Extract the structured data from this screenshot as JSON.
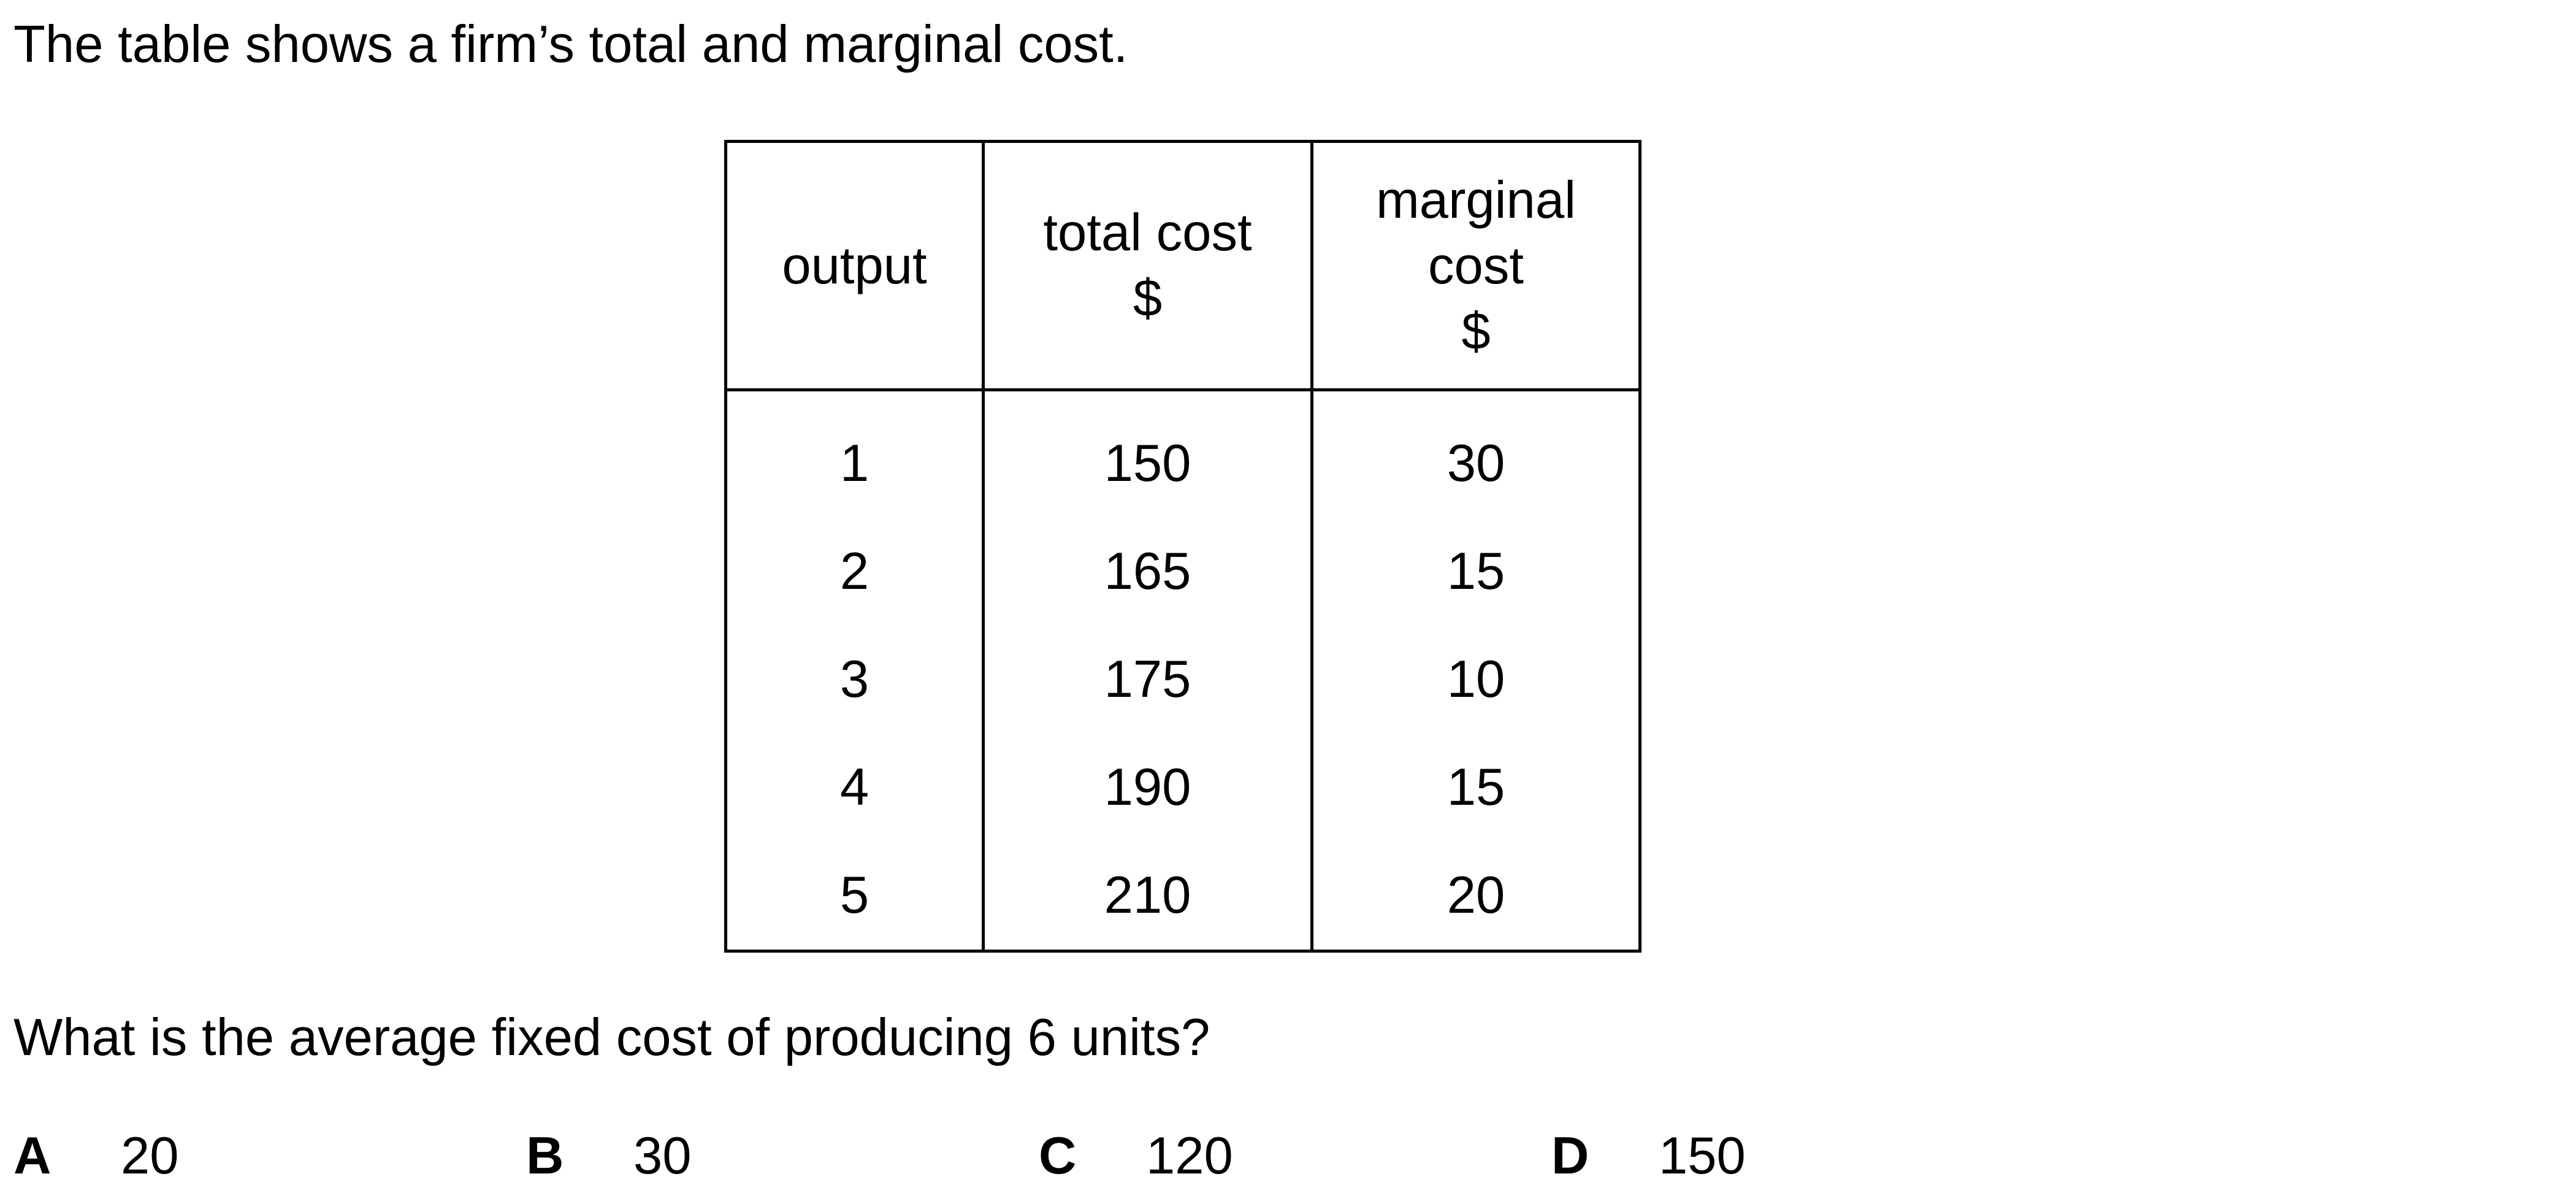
{
  "intro_text": "The table shows a firm’s total and marginal cost.",
  "table": {
    "headers": [
      {
        "lines": [
          "output"
        ]
      },
      {
        "lines": [
          "total cost",
          "$"
        ]
      },
      {
        "lines": [
          "marginal",
          "cost",
          "$"
        ]
      }
    ],
    "rows": [
      [
        "1",
        "150",
        "30"
      ],
      [
        "2",
        "165",
        "15"
      ],
      [
        "3",
        "175",
        "10"
      ],
      [
        "4",
        "190",
        "15"
      ],
      [
        "5",
        "210",
        "20"
      ]
    ]
  },
  "question_text": "What is the average fixed cost of producing 6 units?",
  "options": [
    {
      "letter": "A",
      "value": "20"
    },
    {
      "letter": "B",
      "value": "30"
    },
    {
      "letter": "C",
      "value": "120"
    },
    {
      "letter": "D",
      "value": "150"
    }
  ]
}
